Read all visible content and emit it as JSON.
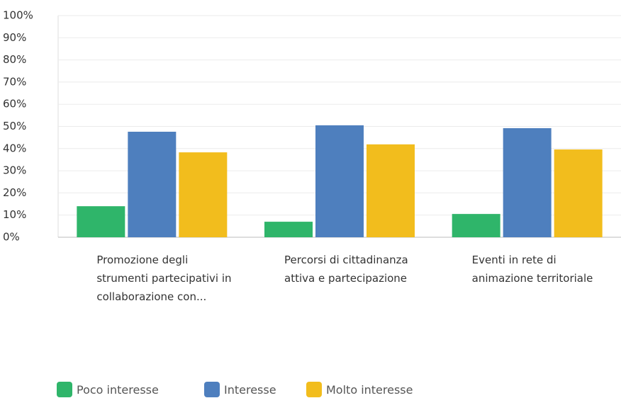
{
  "chart_data": {
    "type": "bar",
    "categories": [
      "Promozione degli strumenti partecipativi in collaborazione con...",
      "Percorsi di cittadinanza attiva e partecipazione",
      "Eventi in rete di animazione territoriale"
    ],
    "series": [
      {
        "name": "Poco interesse",
        "color": "#2fb56a",
        "values": [
          14,
          7,
          10.5
        ]
      },
      {
        "name": "Interesse",
        "color": "#4e7fbe",
        "values": [
          47.6,
          50.5,
          49.2
        ]
      },
      {
        "name": "Molto interesse",
        "color": "#f2bd1d",
        "values": [
          38.3,
          41.9,
          39.6
        ]
      }
    ],
    "ylim": [
      0,
      100
    ],
    "yticks": [
      {
        "value": 0,
        "label": "0%"
      },
      {
        "value": 10,
        "label": "10%"
      },
      {
        "value": 20,
        "label": "20%"
      },
      {
        "value": 30,
        "label": "30%"
      },
      {
        "value": 40,
        "label": "40%"
      },
      {
        "value": 50,
        "label": "50%"
      },
      {
        "value": 60,
        "label": "60%"
      },
      {
        "value": 70,
        "label": "70%"
      },
      {
        "value": 80,
        "label": "80%"
      },
      {
        "value": 90,
        "label": "90%"
      },
      {
        "value": 100,
        "label": "100%"
      }
    ],
    "grid": true
  }
}
